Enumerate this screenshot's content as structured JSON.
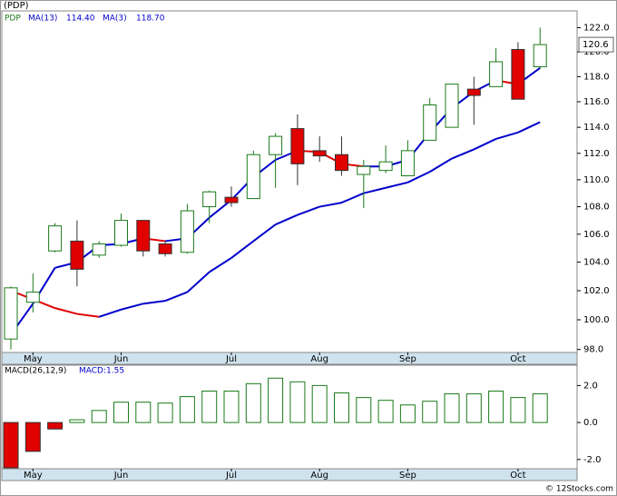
{
  "chart_data": [
    {
      "type": "candlestick",
      "title": "(PDP)",
      "ticker": "PDP",
      "log_scale": true,
      "categories": [
        null,
        "May",
        null,
        null,
        null,
        "Jun",
        null,
        null,
        null,
        null,
        "Jul",
        null,
        null,
        null,
        "Aug",
        null,
        null,
        null,
        "Sep",
        null,
        null,
        null,
        null,
        "Oct",
        null
      ],
      "open": [
        98.7,
        101.2,
        104.8,
        105.5,
        104.5,
        105.2,
        107.0,
        105.3,
        104.7,
        108.0,
        108.7,
        108.6,
        111.9,
        113.9,
        112.2,
        111.9,
        110.4,
        110.7,
        110.3,
        113.0,
        114.0,
        117.0,
        117.2,
        120.2,
        118.8
      ],
      "high": [
        102.3,
        103.2,
        106.8,
        107.0,
        105.5,
        107.5,
        107.0,
        105.5,
        108.2,
        109.2,
        109.5,
        112.2,
        113.55,
        115.0,
        113.3,
        113.3,
        111.5,
        112.6,
        113.0,
        116.3,
        117.4,
        118.0,
        120.3,
        120.8,
        122.0
      ],
      "low": [
        98.0,
        100.5,
        104.7,
        102.3,
        104.3,
        105.1,
        104.4,
        104.4,
        104.6,
        106.8,
        108.0,
        108.6,
        109.4,
        109.6,
        111.35,
        110.3,
        107.9,
        110.5,
        110.3,
        113.0,
        114.0,
        114.2,
        117.2,
        116.2,
        118.65
      ],
      "close": [
        102.2,
        101.9,
        106.6,
        103.5,
        105.3,
        107.0,
        104.8,
        104.6,
        107.7,
        109.1,
        108.3,
        111.9,
        113.3,
        111.2,
        111.8,
        110.7,
        111.0,
        111.35,
        112.2,
        115.75,
        117.4,
        116.5,
        119.2,
        116.2,
        120.6
      ],
      "close_label": "120.6",
      "up_color": "#1a7a1a",
      "down_color": "#e00000",
      "series": [
        {
          "name": "MA(13)",
          "last_label": "114.40",
          "color": "#0000cc",
          "down_color": "#e00000",
          "values": [
            102.0,
            101.4,
            100.8,
            100.4,
            100.2,
            100.7,
            101.1,
            101.3,
            101.9,
            103.3,
            104.3,
            105.5,
            106.7,
            107.4,
            108.0,
            108.3,
            109.0,
            109.4,
            109.8,
            110.6,
            111.6,
            112.3,
            113.1,
            113.6,
            114.4
          ]
        },
        {
          "name": "MA(3)",
          "last_label": "118.70",
          "color": "#0000cc",
          "down_color": "#e00000",
          "values": [
            99.0,
            101.1,
            103.6,
            104.0,
            105.2,
            105.3,
            105.7,
            105.5,
            105.7,
            107.2,
            108.5,
            110.2,
            111.5,
            112.2,
            112.1,
            111.2,
            111.0,
            111.0,
            111.5,
            113.6,
            115.5,
            116.8,
            117.7,
            117.4,
            118.7
          ]
        }
      ],
      "ylim": [
        97.8,
        123.4
      ],
      "yticks": [
        {
          "value": 98,
          "label": "98.0"
        },
        {
          "value": 100,
          "label": "100.0"
        },
        {
          "value": 102,
          "label": "102.0"
        },
        {
          "value": 104,
          "label": "104.0"
        },
        {
          "value": 106,
          "label": "106.0"
        },
        {
          "value": 108,
          "label": "108.0"
        },
        {
          "value": 110,
          "label": "110.0"
        },
        {
          "value": 112,
          "label": "112.0"
        },
        {
          "value": 114,
          "label": "114.0"
        },
        {
          "value": 116,
          "label": "116.0"
        },
        {
          "value": 118,
          "label": "118.0"
        },
        {
          "value": 120,
          "label": "120.0"
        },
        {
          "value": 122,
          "label": "122.0"
        }
      ]
    },
    {
      "type": "bar",
      "title": "MACD(26,12,9)",
      "legend": "MACD:1.55",
      "categories": [
        null,
        "May",
        null,
        null,
        null,
        "Jun",
        null,
        null,
        null,
        null,
        "Jul",
        null,
        null,
        null,
        "Aug",
        null,
        null,
        null,
        "Sep",
        null,
        null,
        null,
        null,
        "Oct",
        null
      ],
      "values": [
        -2.45,
        -1.56,
        -0.35,
        0.15,
        0.65,
        1.1,
        1.1,
        1.05,
        1.4,
        1.7,
        1.7,
        2.1,
        2.4,
        2.2,
        2.0,
        1.6,
        1.35,
        1.2,
        0.95,
        1.15,
        1.55,
        1.55,
        1.7,
        1.35,
        1.55
      ],
      "up_color": "#1a7a1a",
      "down_color": "#e00000",
      "ylim": [
        -2.5,
        3.1
      ],
      "yticks": [
        {
          "value": -2,
          "label": "-2.0"
        },
        {
          "value": 0,
          "label": "0.0"
        },
        {
          "value": 2,
          "label": "2.0"
        }
      ]
    }
  ],
  "credit": "© 12Stocks.com"
}
